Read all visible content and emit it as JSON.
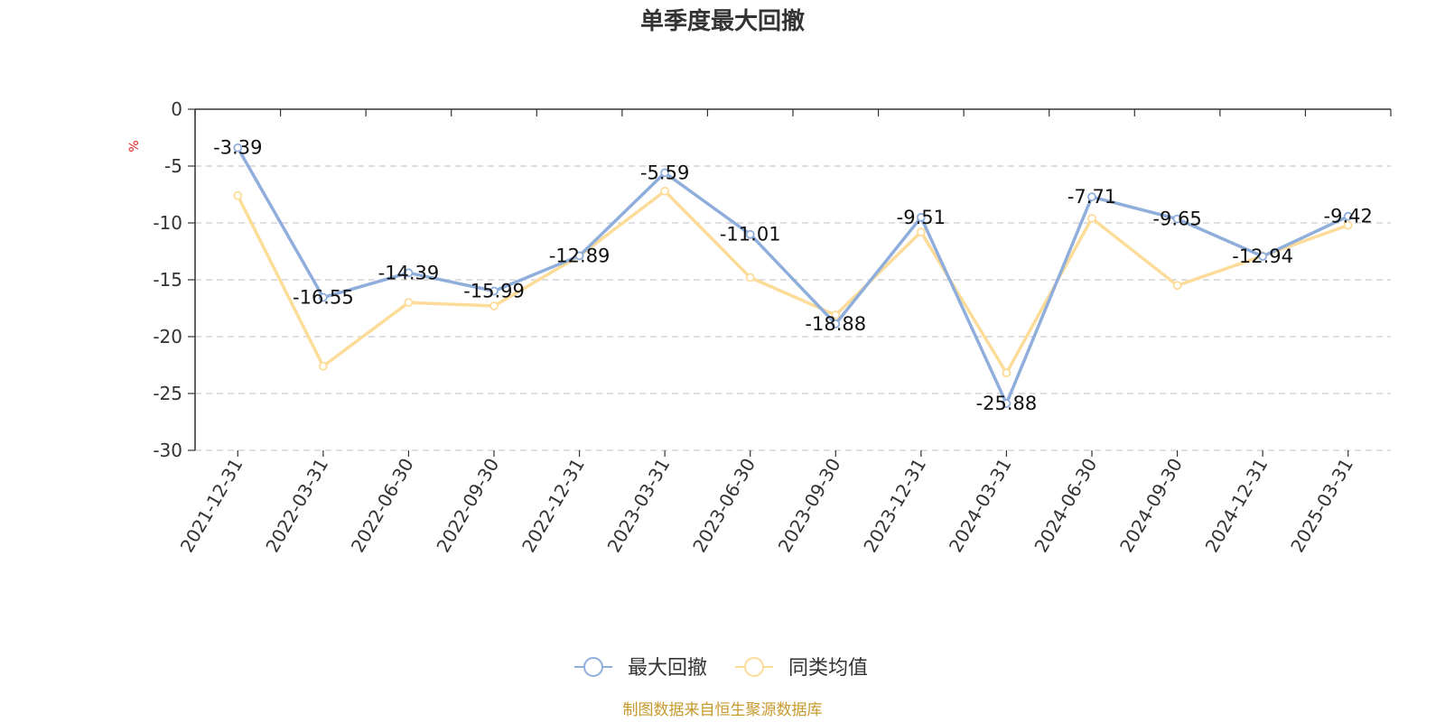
{
  "colors": {
    "series_1": "#8faedc",
    "series_2": "#fddc9a",
    "grid": "#cccccc",
    "axis": "#333333",
    "unit": "#e02020",
    "source": "#c79a2e"
  },
  "chart_data": {
    "type": "line",
    "title": "单季度最大回撤",
    "ylabel": "%",
    "ylim": [
      -30,
      0
    ],
    "yticks": [
      "0",
      "-5",
      "-10",
      "-15",
      "-20",
      "-25",
      "-30"
    ],
    "grid": true,
    "legend_position": "bottom",
    "categories": [
      "2021-12-31",
      "2022-03-31",
      "2022-06-30",
      "2022-09-30",
      "2022-12-31",
      "2023-03-31",
      "2023-06-30",
      "2023-09-30",
      "2023-12-31",
      "2024-03-31",
      "2024-06-30",
      "2024-09-30",
      "2024-12-31",
      "2025-03-31"
    ],
    "series": [
      {
        "name": "最大回撤",
        "values": [
          -3.39,
          -16.55,
          -14.39,
          -15.99,
          -12.89,
          -5.59,
          -11.01,
          -18.88,
          -9.51,
          -25.88,
          -7.71,
          -9.65,
          -12.94,
          -9.42
        ],
        "labels": [
          "-3.39",
          "-16.55",
          "-14.39",
          "-15.99",
          "-12.89",
          "-5.59",
          "-11.01",
          "-18.88",
          "-9.51",
          "-25.88",
          "-7.71",
          "-9.65",
          "-12.94",
          "-9.42"
        ]
      },
      {
        "name": "同类均值",
        "values": [
          -7.6,
          -22.6,
          -17.0,
          -17.3,
          -12.9,
          -7.2,
          -14.8,
          -18.1,
          -10.8,
          -23.2,
          -9.6,
          -15.5,
          -12.9,
          -10.2
        ]
      }
    ],
    "source": "制图数据来自恒生聚源数据库"
  }
}
